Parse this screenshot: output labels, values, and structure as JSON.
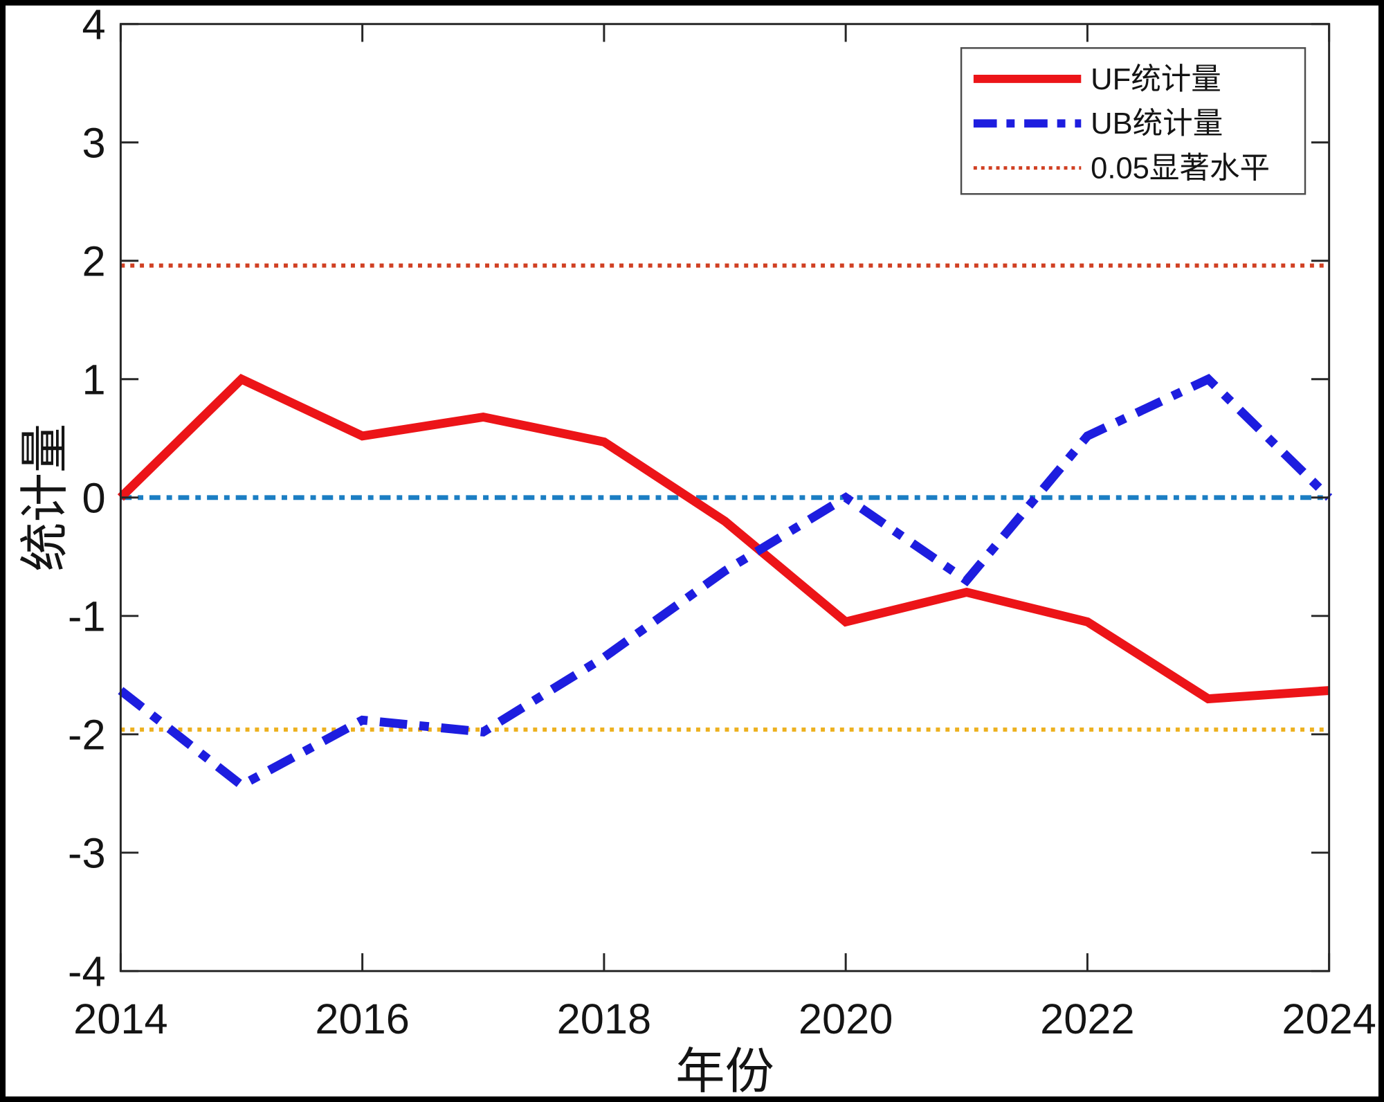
{
  "figure": {
    "background": "#ffffff",
    "frame_color": "#000000",
    "axis_color": "#262626",
    "text_color": "#141414"
  },
  "chart_data": {
    "type": "line",
    "title": "",
    "xlabel": "年份",
    "ylabel": "统计量",
    "xlim": [
      2014,
      2024
    ],
    "ylim": [
      -4,
      4
    ],
    "xticks": [
      2014,
      2016,
      2018,
      2020,
      2022,
      2024
    ],
    "yticks": [
      4,
      3,
      2,
      1,
      0,
      -1,
      -2,
      -3,
      -4
    ],
    "grid": false,
    "legend_position": "top-right",
    "x": [
      2014,
      2015,
      2016,
      2017,
      2018,
      2019,
      2020,
      2021,
      2022,
      2023,
      2024
    ],
    "series": [
      {
        "name": "UF统计量",
        "color": "#EC1418",
        "style": "solid",
        "values": [
          0.0,
          1.0,
          0.52,
          0.68,
          0.47,
          -0.2,
          -1.05,
          -0.8,
          -1.05,
          -1.7,
          -1.63
        ]
      },
      {
        "name": "UB统计量",
        "color": "#1D1DDF",
        "style": "dash-dot",
        "values": [
          -1.63,
          -2.43,
          -1.88,
          -1.98,
          -1.35,
          -0.62,
          0.0,
          -0.7,
          0.52,
          1.0,
          0.0
        ]
      }
    ],
    "reference_lines": [
      {
        "y": 1.96,
        "color": "#D04023",
        "style": "dotted"
      },
      {
        "y": -1.96,
        "color": "#EDB120",
        "style": "dotted"
      },
      {
        "y": 0,
        "color": "#1B7EC3",
        "style": "fine-dash-dot"
      }
    ],
    "legend": [
      {
        "label": "UF统计量",
        "color": "#EC1418",
        "style": "solid"
      },
      {
        "label": "UB统计量",
        "color": "#1D1DDF",
        "style": "dash-dot"
      },
      {
        "label": "0.05显著水平",
        "color": "#D04023",
        "style": "dotted"
      }
    ]
  }
}
